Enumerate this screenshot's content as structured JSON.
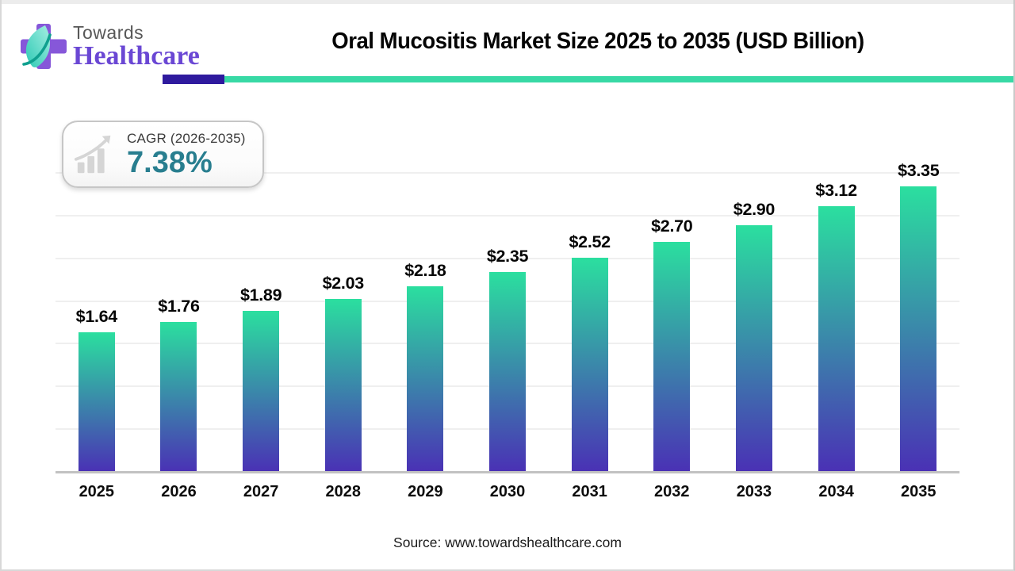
{
  "logo": {
    "brand_top": "Towards",
    "brand_bottom": "Healthcare"
  },
  "header": {
    "title": "Oral Mucositis Market Size 2025 to 2035 (USD Billion)"
  },
  "cagr": {
    "label": "CAGR (2026-2035)",
    "value": "7.38%"
  },
  "chart_data": {
    "type": "bar",
    "title": "Oral Mucositis Market Size 2025 to 2035 (USD Billion)",
    "categories": [
      "2025",
      "2026",
      "2027",
      "2028",
      "2029",
      "2030",
      "2031",
      "2032",
      "2033",
      "2034",
      "2035"
    ],
    "values": [
      1.64,
      1.76,
      1.89,
      2.03,
      2.18,
      2.35,
      2.52,
      2.7,
      2.9,
      3.12,
      3.35
    ],
    "bar_labels": [
      "$1.64",
      "$1.76",
      "$1.89",
      "$2.03",
      "$2.18",
      "$2.35",
      "$2.52",
      "$2.70",
      "$2.90",
      "$3.12",
      "$3.35"
    ],
    "value_prefix": "$",
    "unit": "USD Billion",
    "xlabel": "",
    "ylabel": "",
    "ylim": [
      0,
      3.5
    ],
    "gridline_step": 0.5,
    "grid": true,
    "legend": false
  },
  "source": {
    "text": "Source: www.towardshealthcare.com"
  },
  "colors": {
    "bar_top": "#2BDF9F",
    "bar_bottom": "#4A30B5",
    "underline_teal": "#38D9A5",
    "underline_purple": "#2F1A9E",
    "cagr_value": "#287E8F",
    "brand_purple": "#6A47D4",
    "cross_purple": "#8657D9",
    "leaf_light": "#A5EFE2",
    "leaf_teal": "#2CC9B4",
    "leaf_swoosh": "#0FA08F",
    "towards_gray": "#585858",
    "grid": "#EFEFEF",
    "axis": "#C2C2C2",
    "icon_gray": "#D5D5D5"
  }
}
